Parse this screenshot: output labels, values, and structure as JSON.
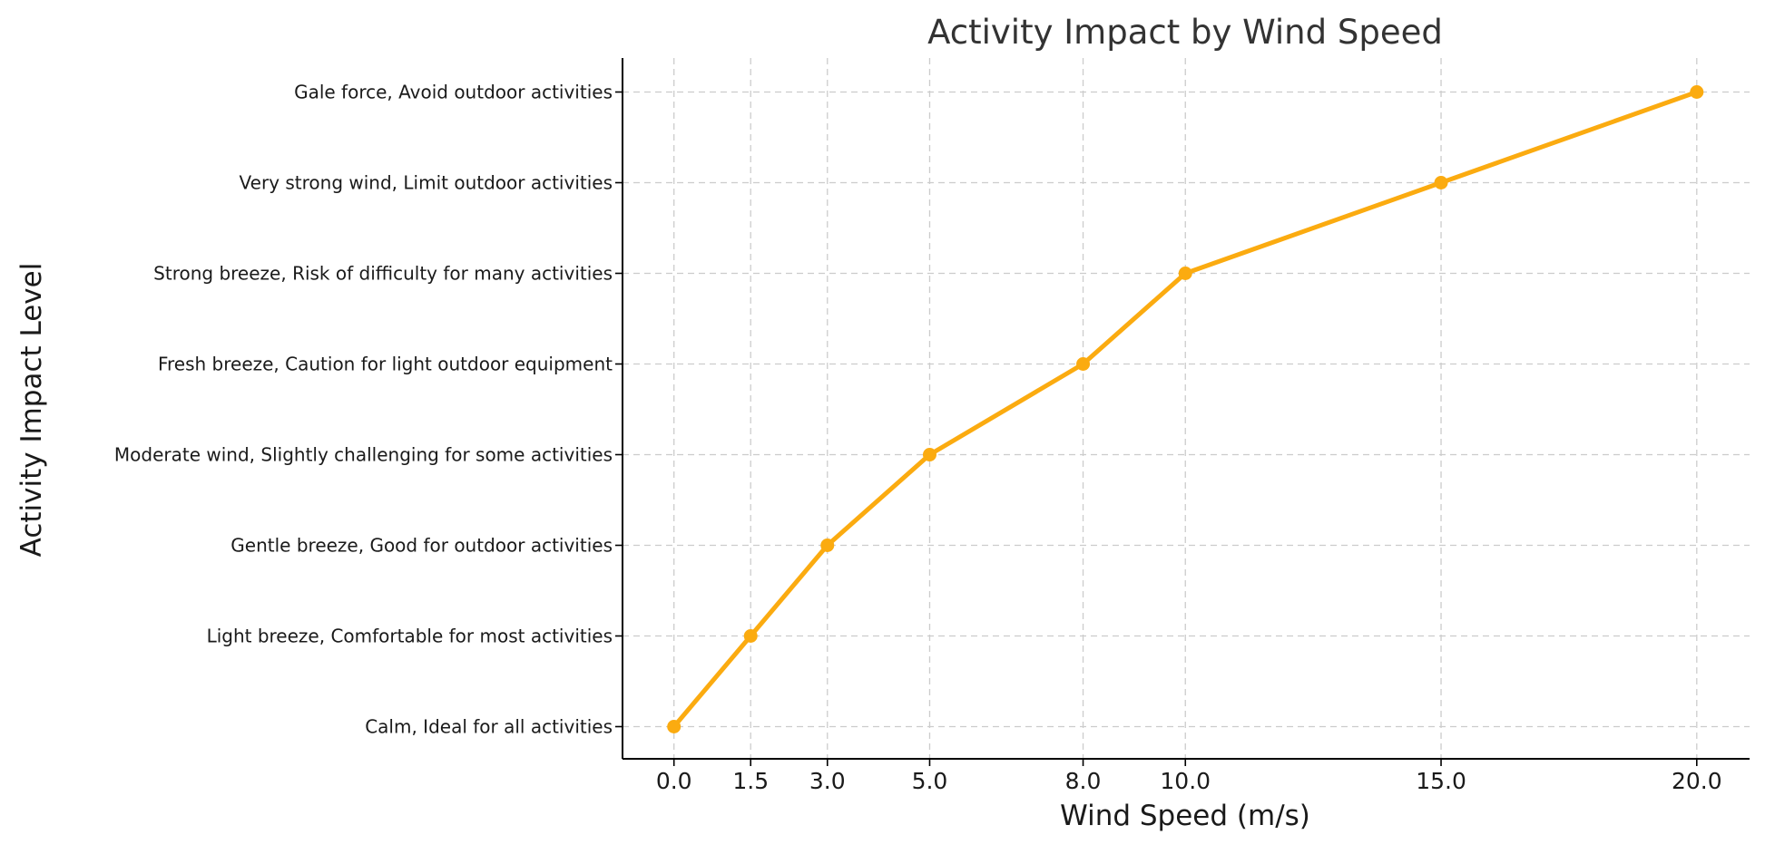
{
  "chart_data": {
    "type": "line",
    "title": "Activity Impact by Wind Speed",
    "xlabel": "Wind Speed (m/s)",
    "ylabel": "Activity Impact Level",
    "x_ticks": [
      "0.0",
      "1.5",
      "3.0",
      "5.0",
      "8.0",
      "10.0",
      "15.0",
      "20.0"
    ],
    "x": [
      0.0,
      1.5,
      3.0,
      5.0,
      8.0,
      10.0,
      15.0,
      20.0
    ],
    "y_categories": [
      "Calm, Ideal for all activities",
      "Light breeze, Comfortable for most activities",
      "Gentle breeze, Good for outdoor activities",
      "Moderate wind, Slightly challenging for some activities",
      "Fresh breeze, Caution for light outdoor equipment",
      "Strong breeze, Risk of difficulty for many activities",
      "Very strong wind, Limit outdoor activities",
      "Gale force, Avoid outdoor activities"
    ],
    "series": [
      {
        "x": [
          0.0,
          1.5,
          3.0,
          5.0,
          8.0,
          10.0,
          15.0,
          20.0
        ],
        "y": [
          "Calm, Ideal for all activities",
          "Light breeze, Comfortable for most activities",
          "Gentle breeze, Good for outdoor activities",
          "Moderate wind, Slightly challenging for some activities",
          "Fresh breeze, Caution for light outdoor equipment",
          "Strong breeze, Risk of difficulty for many activities",
          "Very strong wind, Limit outdoor activities",
          "Gale force, Avoid outdoor activities"
        ],
        "color": "#FBAB10",
        "marker": "circle"
      }
    ],
    "xlim": [
      -1.0,
      21.0
    ],
    "grid": true,
    "legend": "none"
  }
}
